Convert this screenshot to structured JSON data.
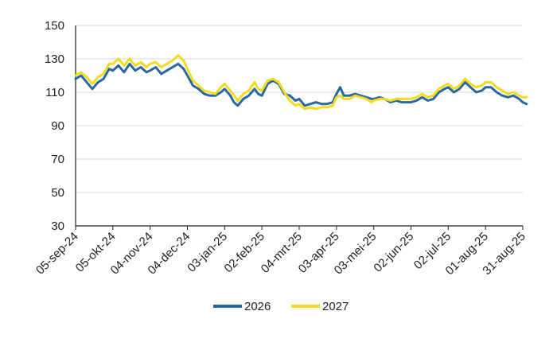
{
  "chart_data": {
    "type": "line",
    "y_ticks": [
      30,
      50,
      70,
      90,
      110,
      130,
      150
    ],
    "ylim": [
      30,
      150
    ],
    "grid": "horizontal",
    "legend_position": "bottom",
    "x_ticks": [
      "05-sep-24",
      "05-okt-24",
      "04-nov-24",
      "04-dec-24",
      "03-jan-25",
      "02-feb-25",
      "04-mrt-25",
      "03-apr-25",
      "03-mei-25",
      "02-jun-25",
      "02-jul-25",
      "01-aug-25",
      "31-aug-25"
    ],
    "x_note": "x values are tick-label indices (0 = 05-sep-24 ... 12 = 31-aug-25)",
    "series": [
      {
        "name": "2026",
        "color": "#2868a3",
        "points": [
          [
            0,
            118
          ],
          [
            0.15,
            120
          ],
          [
            0.3,
            116
          ],
          [
            0.45,
            112
          ],
          [
            0.6,
            116
          ],
          [
            0.75,
            118
          ],
          [
            0.9,
            124
          ],
          [
            1.0,
            123
          ],
          [
            1.15,
            126
          ],
          [
            1.3,
            122
          ],
          [
            1.45,
            127
          ],
          [
            1.6,
            123
          ],
          [
            1.75,
            125
          ],
          [
            1.9,
            122
          ],
          [
            2.0,
            123
          ],
          [
            2.15,
            125
          ],
          [
            2.3,
            121
          ],
          [
            2.45,
            123
          ],
          [
            2.6,
            125
          ],
          [
            2.75,
            127
          ],
          [
            2.9,
            124
          ],
          [
            3.0,
            120
          ],
          [
            3.15,
            114
          ],
          [
            3.3,
            112
          ],
          [
            3.45,
            109
          ],
          [
            3.6,
            108
          ],
          [
            3.75,
            108
          ],
          [
            3.9,
            110
          ],
          [
            4.0,
            112
          ],
          [
            4.15,
            108
          ],
          [
            4.25,
            104
          ],
          [
            4.35,
            102
          ],
          [
            4.5,
            106
          ],
          [
            4.65,
            108
          ],
          [
            4.8,
            112
          ],
          [
            4.9,
            109
          ],
          [
            5.0,
            108
          ],
          [
            5.15,
            115
          ],
          [
            5.3,
            117
          ],
          [
            5.45,
            115
          ],
          [
            5.6,
            109
          ],
          [
            5.75,
            108
          ],
          [
            5.9,
            105
          ],
          [
            6.0,
            106
          ],
          [
            6.15,
            102
          ],
          [
            6.3,
            103
          ],
          [
            6.45,
            104
          ],
          [
            6.6,
            103
          ],
          [
            6.75,
            103
          ],
          [
            6.9,
            104
          ],
          [
            7.0,
            109
          ],
          [
            7.1,
            113
          ],
          [
            7.2,
            108
          ],
          [
            7.35,
            108
          ],
          [
            7.5,
            109
          ],
          [
            7.65,
            108
          ],
          [
            7.8,
            107
          ],
          [
            7.95,
            106
          ],
          [
            8.0,
            106
          ],
          [
            8.15,
            107
          ],
          [
            8.3,
            106
          ],
          [
            8.45,
            104
          ],
          [
            8.6,
            105
          ],
          [
            8.75,
            104
          ],
          [
            8.9,
            104
          ],
          [
            9.0,
            104
          ],
          [
            9.15,
            105
          ],
          [
            9.3,
            107
          ],
          [
            9.45,
            105
          ],
          [
            9.6,
            106
          ],
          [
            9.75,
            110
          ],
          [
            9.9,
            112
          ],
          [
            10.0,
            113
          ],
          [
            10.15,
            110
          ],
          [
            10.3,
            112
          ],
          [
            10.45,
            116
          ],
          [
            10.6,
            113
          ],
          [
            10.75,
            110
          ],
          [
            10.9,
            111
          ],
          [
            11.0,
            113
          ],
          [
            11.15,
            113
          ],
          [
            11.3,
            110
          ],
          [
            11.45,
            108
          ],
          [
            11.6,
            107
          ],
          [
            11.75,
            108
          ],
          [
            11.9,
            106
          ],
          [
            12.0,
            104
          ],
          [
            12.1,
            103
          ]
        ]
      },
      {
        "name": "2027",
        "color": "#f2dc1e",
        "points": [
          [
            0,
            120
          ],
          [
            0.15,
            122
          ],
          [
            0.3,
            119
          ],
          [
            0.45,
            115
          ],
          [
            0.6,
            119
          ],
          [
            0.75,
            121
          ],
          [
            0.9,
            127
          ],
          [
            1.0,
            127
          ],
          [
            1.15,
            130
          ],
          [
            1.3,
            126
          ],
          [
            1.45,
            130
          ],
          [
            1.6,
            126
          ],
          [
            1.75,
            128
          ],
          [
            1.9,
            125
          ],
          [
            2.0,
            127
          ],
          [
            2.15,
            128
          ],
          [
            2.3,
            125
          ],
          [
            2.45,
            127
          ],
          [
            2.6,
            129
          ],
          [
            2.75,
            132
          ],
          [
            2.9,
            129
          ],
          [
            3.0,
            124
          ],
          [
            3.15,
            117
          ],
          [
            3.3,
            114
          ],
          [
            3.45,
            111
          ],
          [
            3.6,
            110
          ],
          [
            3.75,
            109
          ],
          [
            3.9,
            113
          ],
          [
            4.0,
            115
          ],
          [
            4.15,
            111
          ],
          [
            4.25,
            108
          ],
          [
            4.35,
            105
          ],
          [
            4.5,
            109
          ],
          [
            4.65,
            111
          ],
          [
            4.8,
            116
          ],
          [
            4.9,
            112
          ],
          [
            5.0,
            111
          ],
          [
            5.15,
            117
          ],
          [
            5.3,
            118
          ],
          [
            5.45,
            116
          ],
          [
            5.6,
            110
          ],
          [
            5.75,
            105
          ],
          [
            5.9,
            102
          ],
          [
            6.0,
            103
          ],
          [
            6.15,
            100
          ],
          [
            6.3,
            101
          ],
          [
            6.45,
            100
          ],
          [
            6.6,
            101
          ],
          [
            6.75,
            101
          ],
          [
            6.9,
            102
          ],
          [
            7.0,
            107
          ],
          [
            7.1,
            108
          ],
          [
            7.2,
            106
          ],
          [
            7.35,
            106
          ],
          [
            7.5,
            108
          ],
          [
            7.65,
            107
          ],
          [
            7.8,
            106
          ],
          [
            7.95,
            104
          ],
          [
            8.0,
            105
          ],
          [
            8.15,
            106
          ],
          [
            8.3,
            106
          ],
          [
            8.45,
            105
          ],
          [
            8.6,
            106
          ],
          [
            8.75,
            106
          ],
          [
            8.9,
            106
          ],
          [
            9.0,
            106
          ],
          [
            9.15,
            107
          ],
          [
            9.3,
            109
          ],
          [
            9.45,
            107
          ],
          [
            9.6,
            108
          ],
          [
            9.75,
            112
          ],
          [
            9.9,
            114
          ],
          [
            10.0,
            115
          ],
          [
            10.15,
            112
          ],
          [
            10.3,
            114
          ],
          [
            10.45,
            118
          ],
          [
            10.6,
            115
          ],
          [
            10.75,
            113
          ],
          [
            10.9,
            114
          ],
          [
            11.0,
            116
          ],
          [
            11.15,
            116
          ],
          [
            11.3,
            113
          ],
          [
            11.45,
            111
          ],
          [
            11.6,
            109
          ],
          [
            11.75,
            110
          ],
          [
            11.9,
            108
          ],
          [
            12.0,
            107
          ],
          [
            12.1,
            107
          ]
        ]
      }
    ]
  }
}
